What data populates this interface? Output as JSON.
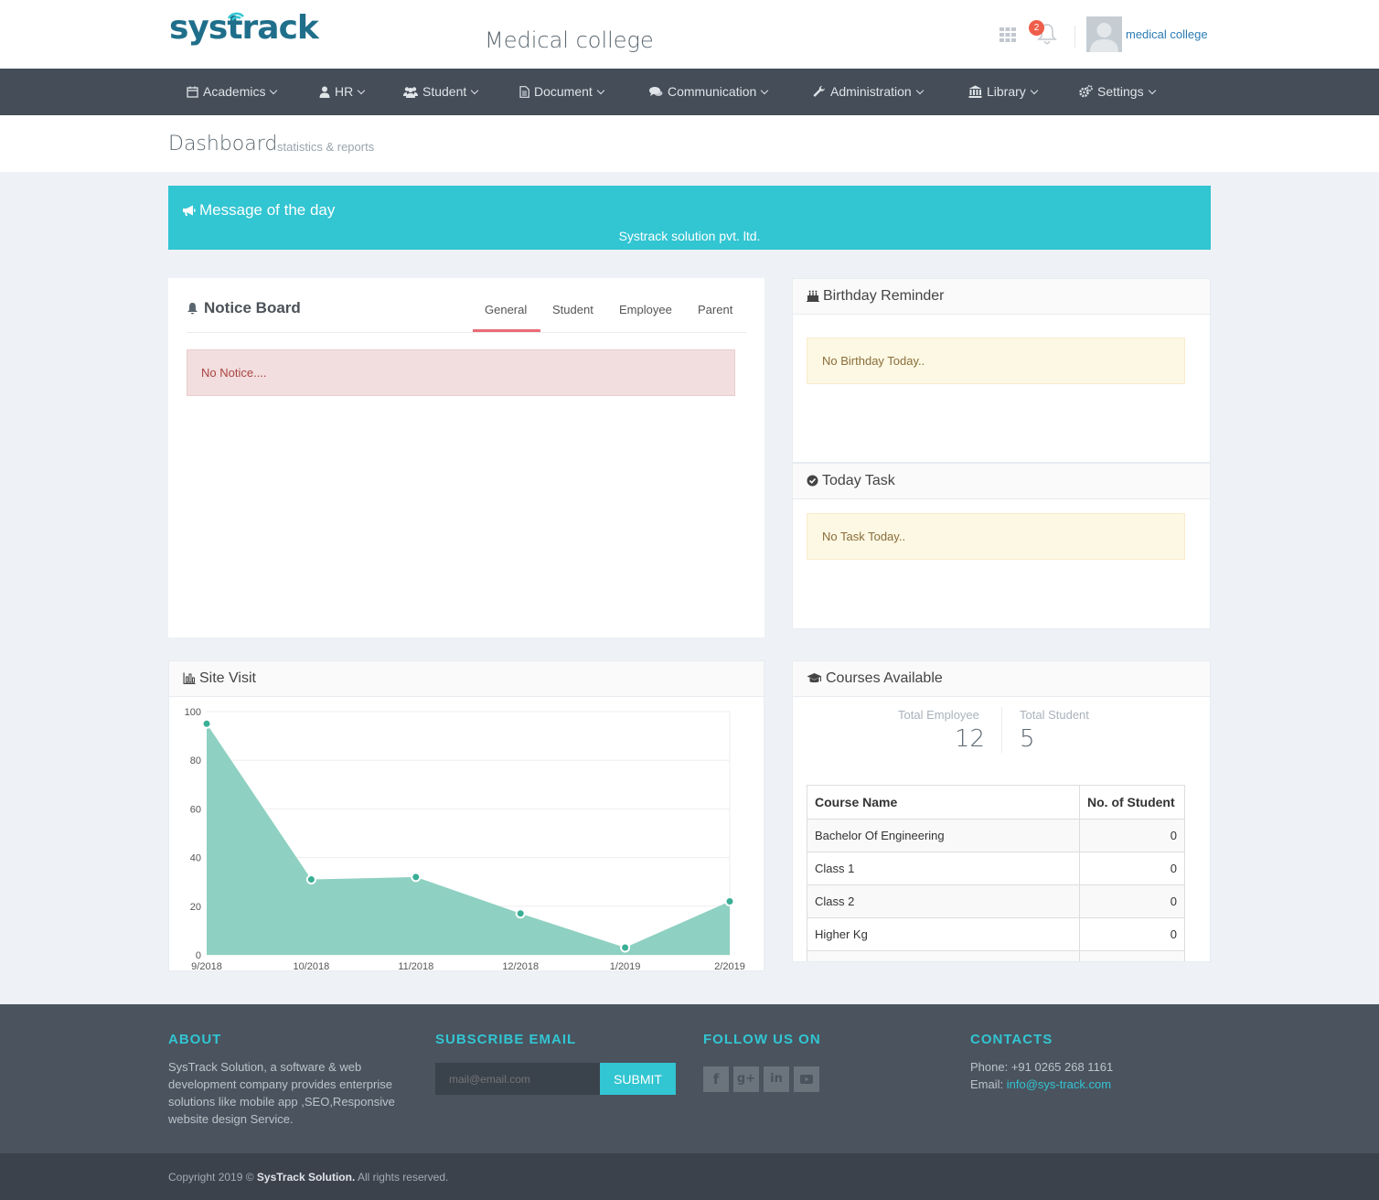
{
  "header": {
    "logo_text": "systrack",
    "college_title": "Medical college",
    "notification_count": "2",
    "user_name": "medical college"
  },
  "nav": {
    "items": [
      {
        "label": "Academics",
        "icon": "calendar-icon"
      },
      {
        "label": "HR",
        "icon": "user-icon"
      },
      {
        "label": "Student",
        "icon": "users-icon"
      },
      {
        "label": "Document",
        "icon": "file-icon"
      },
      {
        "label": "Communication",
        "icon": "comments-icon"
      },
      {
        "label": "Administration",
        "icon": "wrench-icon"
      },
      {
        "label": "Library",
        "icon": "bank-icon"
      },
      {
        "label": "Settings",
        "icon": "cogs-icon"
      }
    ]
  },
  "page": {
    "title": "Dashboard",
    "subtitle": "statistics & reports"
  },
  "motd": {
    "title": "Message of the day",
    "text": "Systrack solution pvt. ltd."
  },
  "notice_board": {
    "title": "Notice Board",
    "tabs": [
      "General",
      "Student",
      "Employee",
      "Parent"
    ],
    "active_tab": "General",
    "empty_message": "No Notice...."
  },
  "birthday": {
    "title": "Birthday Reminder",
    "message": "No Birthday Today.."
  },
  "task": {
    "title": "Today Task",
    "message": "No Task Today.."
  },
  "site_visit": {
    "title": "Site Visit"
  },
  "chart_data": {
    "type": "area",
    "title": "Site Visit",
    "categories": [
      "9/2018",
      "10/2018",
      "11/2018",
      "12/2018",
      "1/2019",
      "2/2019"
    ],
    "values": [
      95,
      31,
      32,
      17,
      3,
      22
    ],
    "ylim": [
      0,
      100
    ],
    "yticks": [
      0,
      20,
      40,
      60,
      80,
      100
    ],
    "color": "#8ed0c1",
    "grid": true
  },
  "courses": {
    "title": "Courses Available",
    "total_employee_label": "Total Employee",
    "total_employee_value": "12",
    "total_student_label": "Total Student",
    "total_student_value": "5",
    "columns": [
      "Course Name",
      "No. of Student"
    ],
    "rows": [
      [
        "Bachelor Of Engineering",
        "0"
      ],
      [
        "Class 1",
        "0"
      ],
      [
        "Class 2",
        "0"
      ],
      [
        "Higher Kg",
        "0"
      ]
    ]
  },
  "footer": {
    "about_title": "ABOUT",
    "about_text": "SysTrack Solution, a software & web development company provides enterprise solutions like mobile app ,SEO,Responsive website design Service.",
    "subscribe_title": "SUBSCRIBE EMAIL",
    "subscribe_placeholder": "mail@email.com",
    "subscribe_button": "SUBMIT",
    "follow_title": "FOLLOW US ON",
    "social": [
      "facebook-icon",
      "google-plus-icon",
      "linkedin-icon",
      "youtube-icon"
    ],
    "contacts_title": "CONTACTS",
    "phone": "Phone: +91 0265 268 1161",
    "email_label": "Email: ",
    "email": "info@sys-track.com",
    "copyright_prefix": "Copyright 2019 © ",
    "copyright_brand": "SysTrack Solution.",
    "copyright_suffix": " All rights reserved."
  }
}
